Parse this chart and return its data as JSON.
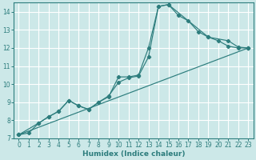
{
  "xlabel": "Humidex (Indice chaleur)",
  "bg_color": "#cce8e8",
  "grid_color": "#ffffff",
  "line_color": "#2d7d7d",
  "xlim": [
    -0.5,
    23.5
  ],
  "ylim": [
    7,
    14.5
  ],
  "yticks": [
    7,
    8,
    9,
    10,
    11,
    12,
    13,
    14
  ],
  "xticks": [
    0,
    1,
    2,
    3,
    4,
    5,
    6,
    7,
    8,
    9,
    10,
    11,
    12,
    13,
    14,
    15,
    16,
    17,
    18,
    19,
    20,
    21,
    22,
    23
  ],
  "series1_x": [
    0,
    1,
    2,
    3,
    4,
    5,
    6,
    7,
    8,
    9,
    10,
    11,
    12,
    13,
    14,
    15,
    16,
    17,
    18,
    19,
    20,
    21,
    22,
    23
  ],
  "series1_y": [
    7.2,
    7.3,
    7.85,
    8.2,
    8.5,
    9.1,
    8.8,
    8.6,
    9.0,
    9.3,
    10.4,
    10.4,
    10.5,
    12.0,
    14.3,
    14.4,
    13.8,
    13.5,
    12.9,
    12.6,
    12.4,
    12.1,
    12.0,
    12.0
  ],
  "series2_x": [
    0,
    23
  ],
  "series2_y": [
    7.2,
    12.0
  ],
  "series3_x": [
    0,
    2,
    3,
    4,
    5,
    6,
    7,
    8,
    9,
    10,
    11,
    12,
    13,
    14,
    15,
    19,
    21,
    22,
    23
  ],
  "series3_y": [
    7.2,
    7.85,
    8.2,
    8.5,
    9.1,
    8.8,
    8.6,
    9.0,
    9.35,
    10.1,
    10.35,
    10.45,
    11.5,
    14.3,
    14.4,
    12.6,
    12.4,
    12.05,
    12.0
  ]
}
